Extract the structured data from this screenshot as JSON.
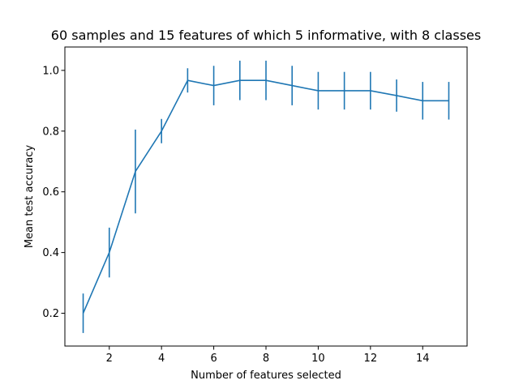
{
  "chart_data": {
    "type": "line",
    "title": "60 samples and 15 features of which 5 informative, with 8 classes",
    "xlabel": "Number of features selected",
    "ylabel": "Mean test accuracy",
    "xlim": [
      0.3,
      15.7
    ],
    "ylim": [
      0.092,
      1.077
    ],
    "xticks": [
      2,
      4,
      6,
      8,
      10,
      12,
      14
    ],
    "yticks": [
      0.2,
      0.4,
      0.6,
      0.8,
      1.0
    ],
    "grid": false,
    "series_color": "#1f77b4",
    "series": [
      {
        "x": [
          1,
          2,
          3,
          4,
          5,
          6,
          7,
          8,
          9,
          10,
          11,
          12,
          13,
          14,
          15
        ],
        "values": [
          0.2,
          0.4,
          0.667,
          0.8,
          0.967,
          0.95,
          0.967,
          0.967,
          0.95,
          0.933,
          0.933,
          0.933,
          0.917,
          0.9,
          0.9
        ],
        "error": [
          0.065,
          0.082,
          0.138,
          0.04,
          0.04,
          0.065,
          0.065,
          0.065,
          0.065,
          0.062,
          0.062,
          0.062,
          0.053,
          0.062,
          0.062
        ]
      }
    ]
  }
}
